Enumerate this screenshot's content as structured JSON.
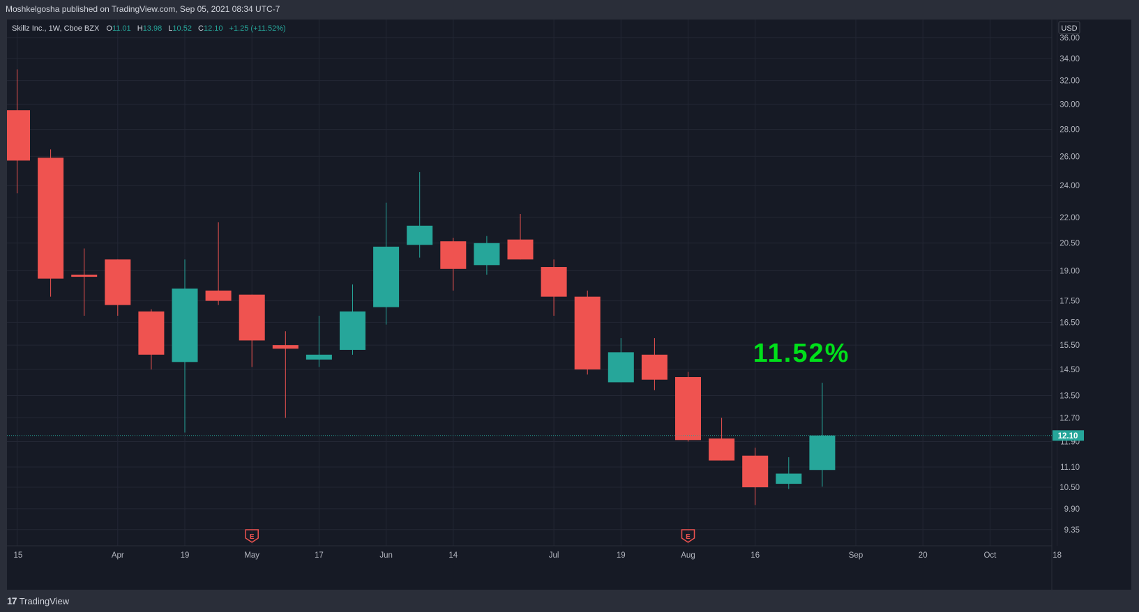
{
  "header": {
    "published_by": "Moshkelgosha published on TradingView.com, Sep 05, 2021 08:34 UTC-7"
  },
  "legend": {
    "symbol": "Skillz Inc., 1W, Cboe BZX",
    "o_label": "O",
    "o_value": "11.01",
    "h_label": "H",
    "h_value": "13.98",
    "l_label": "L",
    "l_value": "10.52",
    "c_label": "C",
    "c_value": "12.10",
    "change": "+1.25 (+11.52%)"
  },
  "currency": "USD",
  "last_price_label": "12.10",
  "annotation": "11.52%",
  "earnings_marker": "E",
  "footer": {
    "brand": "TradingView",
    "brand_mark": "17"
  },
  "colors": {
    "up": "#26a69a",
    "down": "#ef5350",
    "annotation": "#00e01a",
    "background": "#161a25",
    "grid": "#232734",
    "text": "#b2b5be"
  },
  "chart_data": {
    "type": "candlestick",
    "y_scale": "log",
    "y_ticks": [
      "36.00",
      "34.00",
      "32.00",
      "30.00",
      "28.00",
      "26.00",
      "24.00",
      "22.00",
      "20.50",
      "19.00",
      "17.50",
      "16.50",
      "15.50",
      "14.50",
      "13.50",
      "12.70",
      "11.90",
      "11.10",
      "10.50",
      "9.90",
      "9.35"
    ],
    "x_ticks": [
      "15",
      "Apr",
      "19",
      "May",
      "17",
      "Jun",
      "14",
      "Jul",
      "19",
      "Aug",
      "16",
      "Sep",
      "20",
      "Oct",
      "18"
    ],
    "earnings_weeks": [
      "2021-05-03",
      "2021-08-02"
    ],
    "candles": [
      {
        "date": "2021-03-15",
        "open": 29.5,
        "high": 33.0,
        "low": 23.5,
        "close": 25.7
      },
      {
        "date": "2021-03-22",
        "open": 25.9,
        "high": 26.5,
        "low": 17.7,
        "close": 18.6
      },
      {
        "date": "2021-03-29",
        "open": 18.8,
        "high": 20.2,
        "low": 16.8,
        "close": 18.75
      },
      {
        "date": "2021-04-05",
        "open": 19.6,
        "high": 19.6,
        "low": 16.8,
        "close": 17.3
      },
      {
        "date": "2021-04-12",
        "open": 17.0,
        "high": 17.1,
        "low": 14.5,
        "close": 15.1
      },
      {
        "date": "2021-04-19",
        "open": 14.8,
        "high": 19.6,
        "low": 12.2,
        "close": 18.1
      },
      {
        "date": "2021-04-26",
        "open": 18.0,
        "high": 21.7,
        "low": 17.3,
        "close": 17.5
      },
      {
        "date": "2021-05-03",
        "open": 17.8,
        "high": 17.8,
        "low": 14.6,
        "close": 15.7
      },
      {
        "date": "2021-05-10",
        "open": 15.5,
        "high": 16.1,
        "low": 12.7,
        "close": 15.35
      },
      {
        "date": "2021-05-17",
        "open": 14.9,
        "high": 16.8,
        "low": 14.6,
        "close": 15.1
      },
      {
        "date": "2021-05-24",
        "open": 15.3,
        "high": 18.3,
        "low": 15.1,
        "close": 17.0
      },
      {
        "date": "2021-05-31",
        "open": 17.2,
        "high": 22.9,
        "low": 16.4,
        "close": 20.3
      },
      {
        "date": "2021-06-07",
        "open": 20.4,
        "high": 24.9,
        "low": 19.7,
        "close": 21.5
      },
      {
        "date": "2021-06-14",
        "open": 20.6,
        "high": 20.8,
        "low": 18.0,
        "close": 19.1
      },
      {
        "date": "2021-06-21",
        "open": 19.3,
        "high": 20.9,
        "low": 18.8,
        "close": 20.5
      },
      {
        "date": "2021-06-28",
        "open": 20.7,
        "high": 22.2,
        "low": 19.6,
        "close": 19.6
      },
      {
        "date": "2021-07-05",
        "open": 19.2,
        "high": 19.6,
        "low": 16.8,
        "close": 17.7
      },
      {
        "date": "2021-07-12",
        "open": 17.7,
        "high": 18.0,
        "low": 14.3,
        "close": 14.5
      },
      {
        "date": "2021-07-19",
        "open": 14.0,
        "high": 15.8,
        "low": 14.0,
        "close": 15.2
      },
      {
        "date": "2021-07-26",
        "open": 15.1,
        "high": 15.8,
        "low": 13.7,
        "close": 14.1
      },
      {
        "date": "2021-08-02",
        "open": 14.2,
        "high": 14.4,
        "low": 11.9,
        "close": 11.95
      },
      {
        "date": "2021-08-09",
        "open": 12.0,
        "high": 12.7,
        "low": 11.3,
        "close": 11.3
      },
      {
        "date": "2021-08-16",
        "open": 11.45,
        "high": 11.7,
        "low": 10.0,
        "close": 10.5
      },
      {
        "date": "2021-08-23",
        "open": 10.6,
        "high": 11.4,
        "low": 10.45,
        "close": 10.9
      },
      {
        "date": "2021-08-30",
        "open": 11.01,
        "high": 13.98,
        "low": 10.52,
        "close": 12.1
      }
    ]
  }
}
